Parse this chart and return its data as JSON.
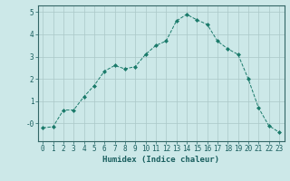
{
  "x": [
    0,
    1,
    2,
    3,
    4,
    5,
    6,
    7,
    8,
    9,
    10,
    11,
    12,
    13,
    14,
    15,
    16,
    17,
    18,
    19,
    20,
    21,
    22,
    23
  ],
  "y": [
    -0.2,
    -0.15,
    0.6,
    0.6,
    1.2,
    1.7,
    2.35,
    2.6,
    2.45,
    2.55,
    3.1,
    3.5,
    3.7,
    4.6,
    4.9,
    4.65,
    4.45,
    3.7,
    3.35,
    3.1,
    2.0,
    0.7,
    -0.1,
    -0.4
  ],
  "line_color": "#1a7a6a",
  "marker": "D",
  "marker_size": 2,
  "bg_color": "#cce8e8",
  "grid_color": "#aac8c8",
  "xlabel": "Humidex (Indice chaleur)",
  "ylim": [
    -0.8,
    5.3
  ],
  "xlim": [
    -0.5,
    23.5
  ],
  "yticks": [
    0,
    1,
    2,
    3,
    4,
    5
  ],
  "ytick_labels": [
    "-0",
    "1",
    "2",
    "3",
    "4",
    "5"
  ],
  "xticks": [
    0,
    1,
    2,
    3,
    4,
    5,
    6,
    7,
    8,
    9,
    10,
    11,
    12,
    13,
    14,
    15,
    16,
    17,
    18,
    19,
    20,
    21,
    22,
    23
  ],
  "title_color": "#1a5f5f",
  "axis_color": "#336666",
  "tick_color": "#1a5f5f",
  "xlabel_fontsize": 6.5,
  "tick_fontsize": 5.5
}
